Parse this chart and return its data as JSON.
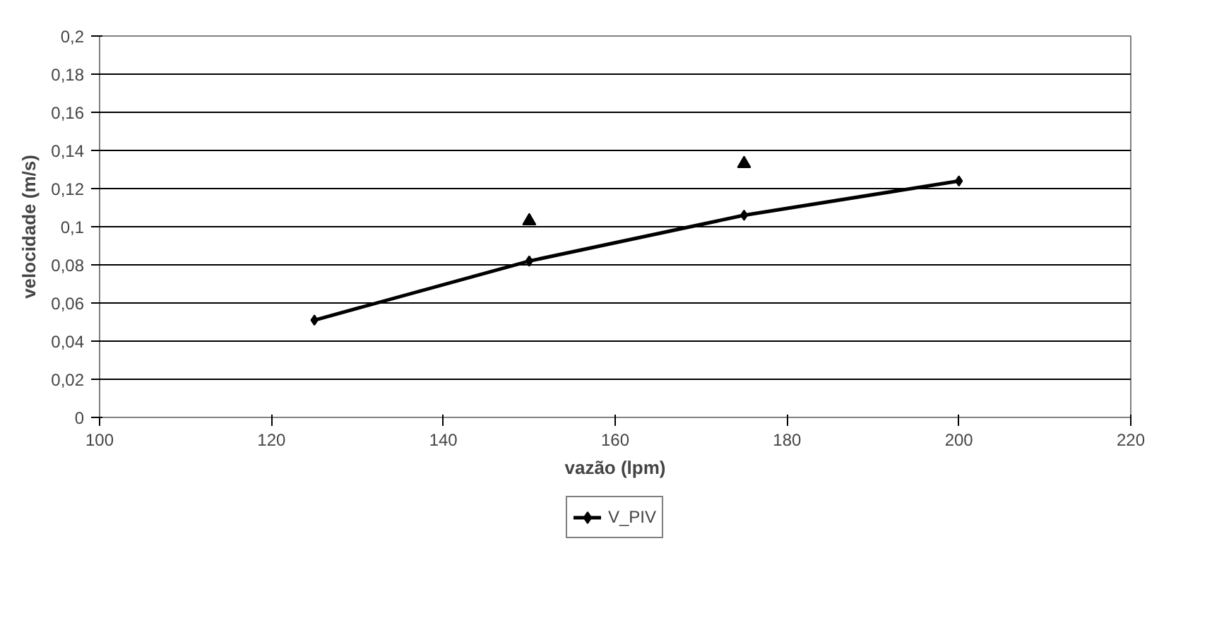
{
  "chart_data": {
    "type": "line",
    "xlabel": "vazão (lpm)",
    "ylabel": "velocidade (m/s)",
    "series": [
      {
        "name": "V_PIV",
        "color": "#000000",
        "x": [
          125,
          150,
          175,
          200
        ],
        "values": [
          0.051,
          0.082,
          0.106,
          0.124
        ],
        "marker": "diamond",
        "line_style": "solid"
      },
      {
        "type": "scatter",
        "color": "#000000",
        "x": [
          150,
          175
        ],
        "values": [
          0.103,
          0.133
        ],
        "marker": "triangle"
      }
    ],
    "xlim": [
      100,
      220
    ],
    "xticks": [
      100,
      120,
      140,
      160,
      180,
      200,
      220
    ],
    "ylim": [
      0,
      0.2
    ],
    "yticks": [
      {
        "value": 0,
        "label": "0"
      },
      {
        "value": 0.02,
        "label": "0,02"
      },
      {
        "value": 0.04,
        "label": "0,04"
      },
      {
        "value": 0.06,
        "label": "0,06"
      },
      {
        "value": 0.08,
        "label": "0,08"
      },
      {
        "value": 0.1,
        "label": "0,1"
      },
      {
        "value": 0.12,
        "label": "0,12"
      },
      {
        "value": 0.14,
        "label": "0,14"
      },
      {
        "value": 0.16,
        "label": "0,16"
      },
      {
        "value": 0.18,
        "label": "0,18"
      },
      {
        "value": 0.2,
        "label": "0,2"
      }
    ],
    "grid": "y",
    "legend": "bottom"
  }
}
